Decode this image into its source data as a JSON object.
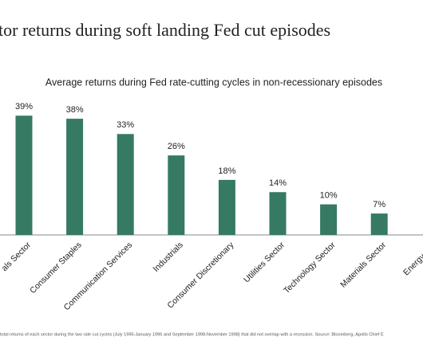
{
  "chart_data": {
    "type": "bar",
    "title": "tor returns during soft landing Fed cut episodes",
    "subtitle": "Average returns during Fed rate-cutting cycles in non-recessionary episodes",
    "categories": [
      "als Sector",
      "Consumer Staples",
      "Communication Services",
      "Industrials",
      "Consumer Discretionary",
      "Utilities Sector",
      "Technology Sector",
      "Materials Sector",
      "Energy Sec"
    ],
    "values": [
      39,
      38,
      33,
      26,
      18,
      14,
      10,
      7,
      null
    ],
    "value_labels": [
      "39%",
      "38%",
      "33%",
      "26%",
      "18%",
      "14%",
      "10%",
      "7%",
      null
    ],
    "color": "#367a63",
    "footnote": "total returns of each sector during the two rate cut cycles (July 1995-January 1996 and September 1998-November 1998) that did not overlap with a recession. Source: Bloomberg, Apollo Chief E"
  }
}
